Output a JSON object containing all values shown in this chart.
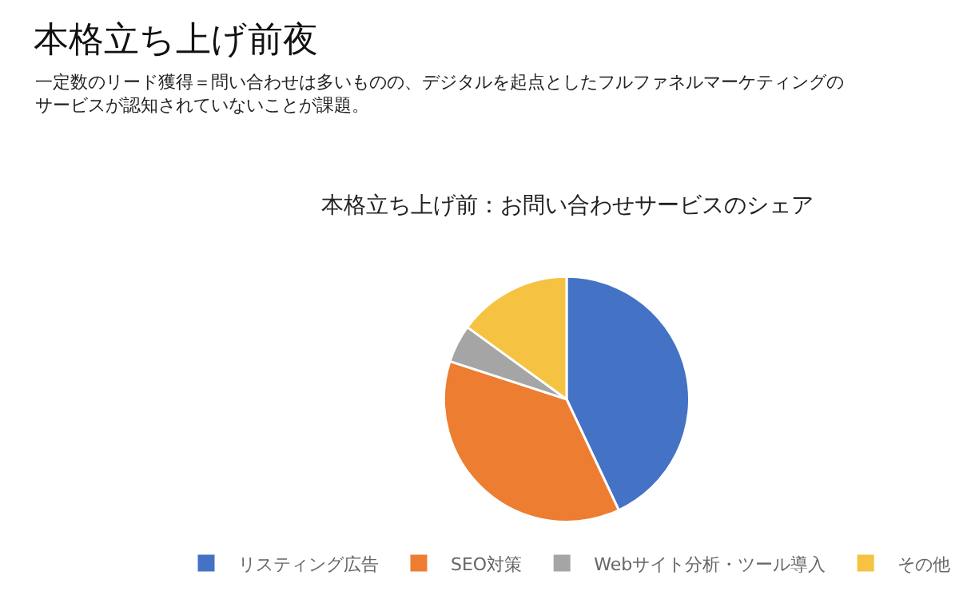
{
  "chart_data": {
    "type": "pie",
    "title": "本格立ち上げ前夜",
    "subtitle": "一定数のリード獲得＝問い合わせは多いものの、デジタルを起点としたフルファネルマーケティングのサービスが認知されていないことが課題。",
    "annotations": [
      "本格立ち上げ前：お問い合わせサービスのシェア"
    ],
    "categories": [
      "リスティング広告",
      "SEO対策",
      "Webサイト分析・ツール導入",
      "その他"
    ],
    "values": [
      43,
      37,
      5,
      15
    ],
    "colors": [
      "#4472c4",
      "#ed7d31",
      "#a5a5a5",
      "#f5c242"
    ],
    "legend": "bottom"
  }
}
